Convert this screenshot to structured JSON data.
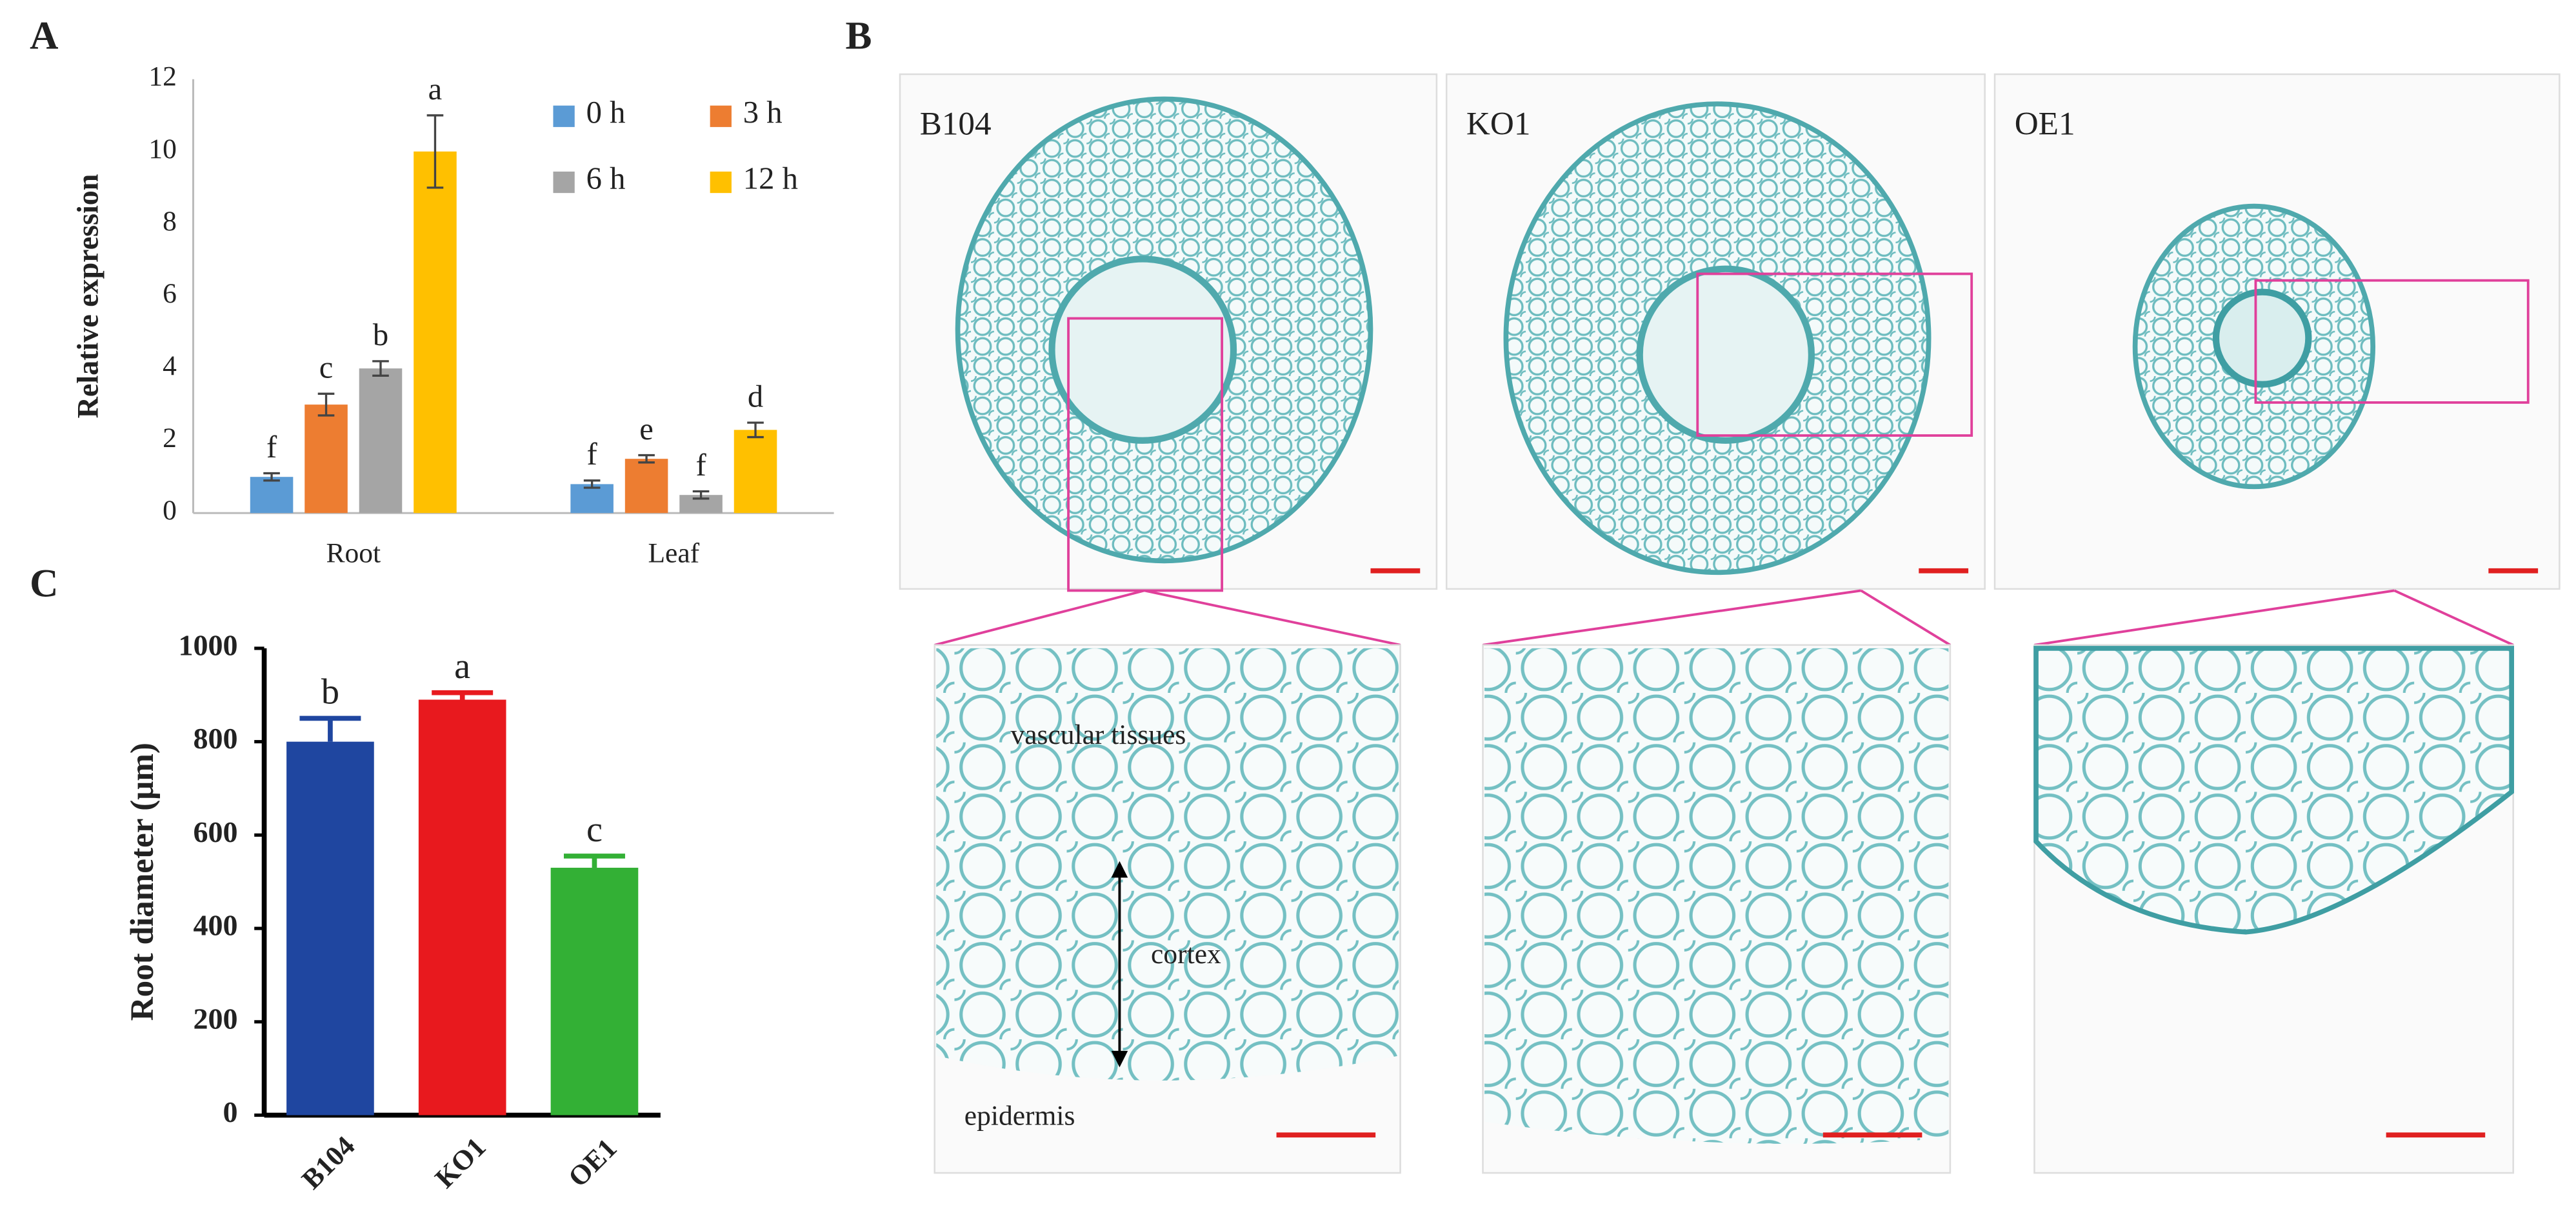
{
  "panel_labels": [
    "A",
    "B",
    "C"
  ],
  "chart_data": [
    {
      "type": "bar",
      "y_label": "Relative expression",
      "categories": [
        "Root",
        "Leaf"
      ],
      "series": [
        {
          "name": "0 h",
          "color": "#5b9bd5",
          "values": [
            1.0,
            0.8
          ],
          "errors": [
            0.1,
            0.1
          ],
          "significance": [
            "f",
            "f"
          ]
        },
        {
          "name": "3 h",
          "color": "#ed7d31",
          "values": [
            3.0,
            1.5
          ],
          "errors": [
            0.3,
            0.1
          ],
          "significance": [
            "c",
            "e"
          ]
        },
        {
          "name": "6 h",
          "color": "#a5a5a5",
          "values": [
            4.0,
            0.5
          ],
          "errors": [
            0.2,
            0.1
          ],
          "significance": [
            "b",
            "f"
          ]
        },
        {
          "name": "12 h",
          "color": "#ffc000",
          "values": [
            10.0,
            2.3
          ],
          "errors": [
            1.0,
            0.2
          ],
          "significance": [
            "a",
            "d"
          ]
        }
      ],
      "ylim": [
        0,
        12
      ],
      "yticks": [
        0,
        2,
        4,
        6,
        8,
        10,
        12
      ],
      "grid": false,
      "legend": "top-right"
    },
    {
      "type": "bar",
      "y_label": "Root diameter (μm)",
      "categories": [
        "B104",
        "KO1",
        "OE1"
      ],
      "values": [
        800,
        890,
        530
      ],
      "errors": [
        50,
        15,
        25
      ],
      "significance": [
        "b",
        "a",
        "c"
      ],
      "colors": [
        "#1f46a0",
        "#e8191e",
        "#33b035"
      ],
      "ylim": [
        0,
        1000
      ],
      "yticks": [
        0,
        200,
        400,
        600,
        800,
        1000
      ],
      "grid": false
    }
  ],
  "micrographs": {
    "labels": [
      "B104",
      "KO1",
      "OE1"
    ],
    "annotations": [
      "vascular tissues",
      "cortex",
      "epidermis"
    ]
  }
}
